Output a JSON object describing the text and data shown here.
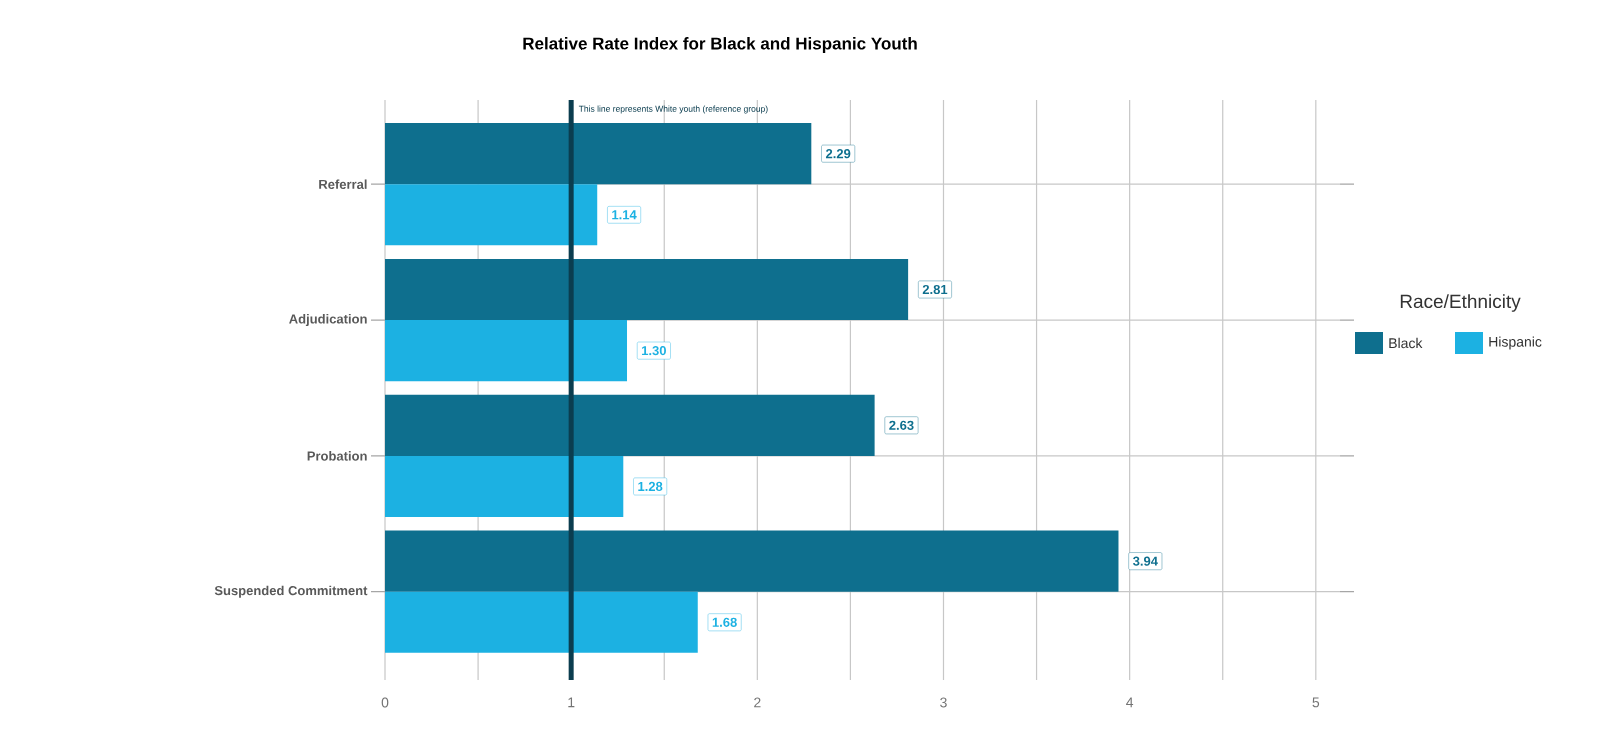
{
  "chart_data": {
    "type": "bar",
    "orientation": "horizontal",
    "title": "Relative Rate Index for Black and Hispanic Youth",
    "categories": [
      "Referral",
      "Adjudication",
      "Probation",
      "Suspended Commitment"
    ],
    "series": [
      {
        "name": "Black",
        "color": "#0e6f8e",
        "values": [
          2.29,
          2.81,
          2.63,
          3.94
        ],
        "value_labels": [
          "2.29",
          "2.81",
          "2.63",
          "3.94"
        ]
      },
      {
        "name": "Hispanic",
        "color": "#1cb1e2",
        "values": [
          1.14,
          1.3,
          1.28,
          1.68
        ],
        "value_labels": [
          "1.14",
          "1.30",
          "1.28",
          "1.68"
        ]
      }
    ],
    "xlim": [
      0,
      5.13
    ],
    "xticks": [
      0,
      {
        "value": 0.5,
        "label": null
      },
      1,
      {
        "value": 1.5,
        "label": null
      },
      2,
      {
        "value": 2.5,
        "label": null
      },
      3,
      {
        "value": 3.5,
        "label": null
      },
      4,
      {
        "value": 4.5,
        "label": null
      },
      5
    ],
    "ref_lines": [
      {
        "axis": "x",
        "value": 1,
        "label": "This line represents White youth (reference group)",
        "color": "#0b3d4f"
      }
    ],
    "grid": true,
    "legend": "right",
    "legend_title": "Race/Ethnicity"
  }
}
